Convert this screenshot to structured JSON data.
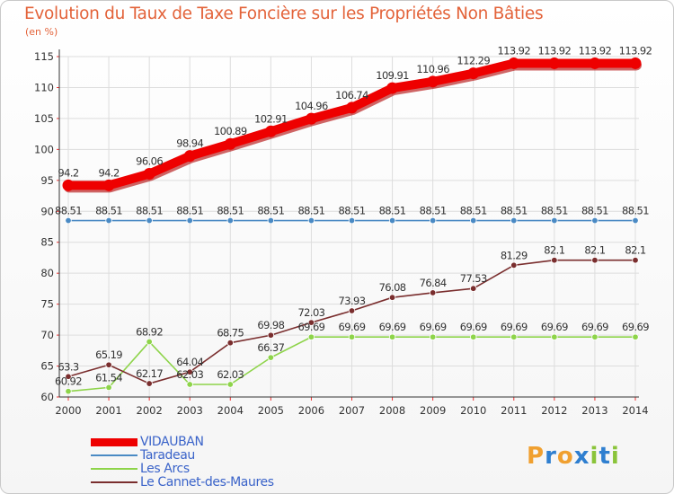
{
  "header": {
    "title": "Evolution du Taux de Taxe Foncière sur les Propriétés Non Bâties",
    "unit": "(en %)"
  },
  "colors": {
    "title": "#e3633a",
    "legend_text": "#3a63c9",
    "grid": "#dddddd",
    "axis": "#333333"
  },
  "chart_data": {
    "type": "line",
    "title": "Evolution du Taux de Taxe Foncière sur les Propriétés Non Bâties",
    "ylabel": "(en %)",
    "xlabel": "",
    "x": [
      2000,
      2001,
      2002,
      2003,
      2004,
      2005,
      2006,
      2007,
      2008,
      2009,
      2010,
      2011,
      2012,
      2013,
      2014
    ],
    "ylim": [
      60,
      115
    ],
    "yticks": [
      60,
      65,
      70,
      75,
      80,
      85,
      90,
      95,
      100,
      105,
      110,
      115
    ],
    "grid": true,
    "legend_position": "bottom-left",
    "series": [
      {
        "name": "VIDAUBAN",
        "color": "#ee0000",
        "values": [
          94.2,
          94.2,
          96.06,
          98.94,
          100.89,
          102.91,
          104.96,
          106.74,
          109.91,
          110.96,
          112.29,
          113.92,
          113.92,
          113.92,
          113.92
        ],
        "labels": [
          "94.2",
          "94.2",
          "96.06",
          "98.94",
          "100.89",
          "102.91",
          "104.96",
          "106.74",
          "109.91",
          "110.96",
          "112.29",
          "113.92",
          "113.92",
          "113.92",
          "113.92"
        ]
      },
      {
        "name": "Taradeau",
        "color": "#4a8ac4",
        "values": [
          88.51,
          88.51,
          88.51,
          88.51,
          88.51,
          88.51,
          88.51,
          88.51,
          88.51,
          88.51,
          88.51,
          88.51,
          88.51,
          88.51,
          88.51
        ],
        "labels": [
          "88.51",
          "88.51",
          "88.51",
          "88.51",
          "88.51",
          "88.51",
          "88.51",
          "88.51",
          "88.51",
          "88.51",
          "88.51",
          "88.51",
          "88.51",
          "88.51",
          "88.51"
        ]
      },
      {
        "name": "Les Arcs",
        "color": "#8ed44a",
        "values": [
          60.92,
          61.54,
          68.92,
          62.03,
          62.03,
          66.37,
          69.69,
          69.69,
          69.69,
          69.69,
          69.69,
          69.69,
          69.69,
          69.69,
          69.69
        ],
        "labels": [
          "60.92",
          "61.54",
          "68.92",
          "62.03",
          "62.03",
          "66.37",
          "69.69",
          "69.69",
          "69.69",
          "69.69",
          "69.69",
          "69.69",
          "69.69",
          "69.69",
          "69.69"
        ]
      },
      {
        "name": "Le Cannet-des-Maures",
        "color": "#7a2e2e",
        "values": [
          63.3,
          65.19,
          62.17,
          64.04,
          68.75,
          69.98,
          72.03,
          73.93,
          76.08,
          76.84,
          77.53,
          81.29,
          82.1,
          82.1,
          82.1
        ],
        "labels": [
          "63.3",
          "65.19",
          "62.17",
          "64.04",
          "68.75",
          "69.98",
          "72.03",
          "73.93",
          "76.08",
          "76.84",
          "77.53",
          "81.29",
          "82.1",
          "82.1",
          "82.1"
        ]
      }
    ]
  },
  "logo": {
    "letters": [
      "P",
      "r",
      "o",
      "x",
      "i",
      "t",
      "i"
    ],
    "colors": [
      "#f0a030",
      "#2f7fd0",
      "#f0a030",
      "#2f7fd0",
      "#8ac43a",
      "#2f7fd0",
      "#8ac43a"
    ]
  }
}
